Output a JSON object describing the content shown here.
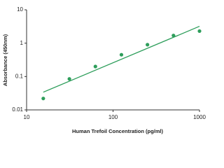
{
  "chart_data": {
    "type": "scatter",
    "log_x": true,
    "log_y": true,
    "x_label": "Human Trefoil Concentration (pg/ml)",
    "y_label": "Absorbance (450nm)",
    "x": [
      15.6,
      31.25,
      62.5,
      125,
      250,
      500,
      1000
    ],
    "values": [
      0.022,
      0.085,
      0.2,
      0.45,
      0.9,
      1.7,
      2.3
    ],
    "color": "#2e9e5b",
    "trendline": {
      "x": [
        15.6,
        1000
      ],
      "values": [
        0.034,
        3.2
      ],
      "color": "#2e9e5b"
    },
    "xlim": [
      10,
      1000
    ],
    "ylim": [
      0.01,
      10
    ],
    "xticks": [
      10,
      100,
      1000
    ],
    "yticks": [
      0.01,
      0.1,
      1,
      10
    ]
  }
}
